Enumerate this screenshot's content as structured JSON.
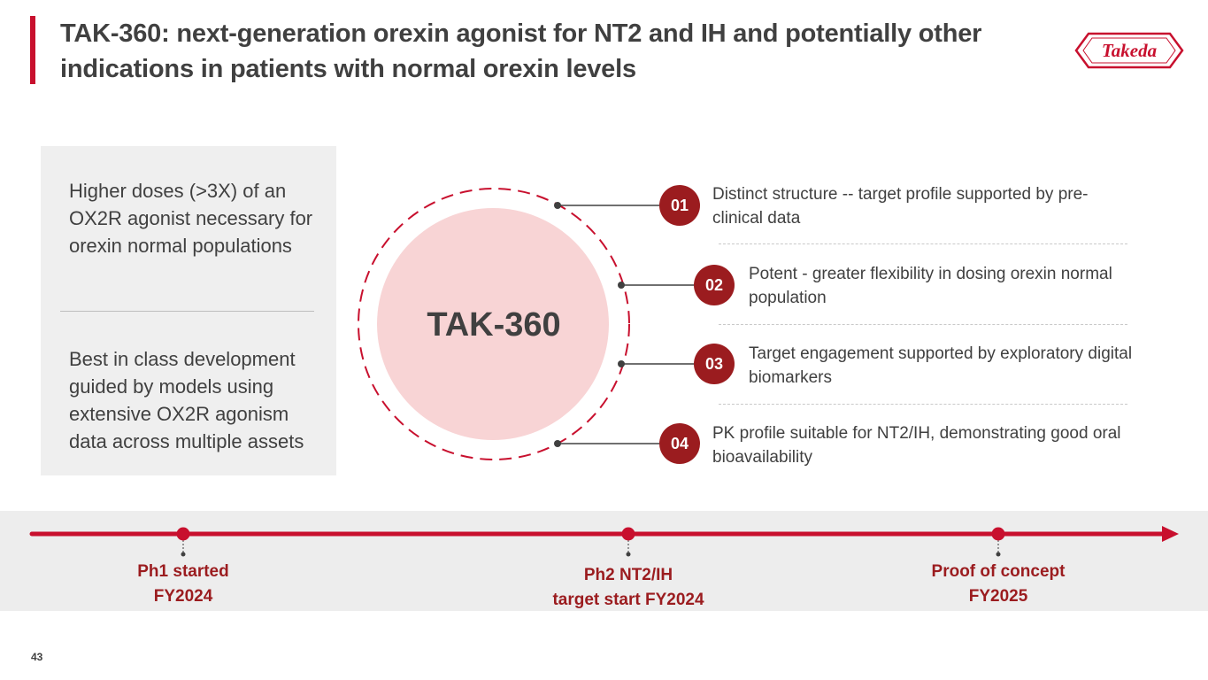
{
  "slide": {
    "title": "TAK-360: next-generation orexin agonist for NT2 and IH and potentially other indications in patients with normal orexin levels",
    "logo_text": "Takeda",
    "page_number": "43"
  },
  "left_panel": {
    "text_1": "Higher doses (>3X) of an OX2R agonist necessary for orexin normal populations",
    "text_2": "Best in class development guided by models using extensive OX2R agonism data across multiple assets"
  },
  "center": {
    "label": "TAK-360"
  },
  "points": [
    {
      "number": "01",
      "text": "Distinct structure -- target profile supported by pre-clinical data"
    },
    {
      "number": "02",
      "text": "Potent - greater flexibility in dosing orexin normal population"
    },
    {
      "number": "03",
      "text": "Target engagement supported by exploratory digital biomarkers"
    },
    {
      "number": "04",
      "text": "PK profile suitable for NT2/IH, demonstrating good oral bioavailability"
    }
  ],
  "timeline": {
    "milestones": [
      {
        "line1": "Ph1 started",
        "line2": "FY2024"
      },
      {
        "line1": "Ph2 NT2/IH",
        "line2": "target start FY2024"
      },
      {
        "line1": "Proof of concept",
        "line2": "FY2025"
      }
    ]
  },
  "colors": {
    "accent_red": "#c8102e",
    "dark_red": "#9b1c1f",
    "circle_pink": "#f8d4d5",
    "text_gray": "#404040",
    "panel_gray": "#efefef"
  },
  "icons": {
    "logo": "takeda-logo"
  }
}
